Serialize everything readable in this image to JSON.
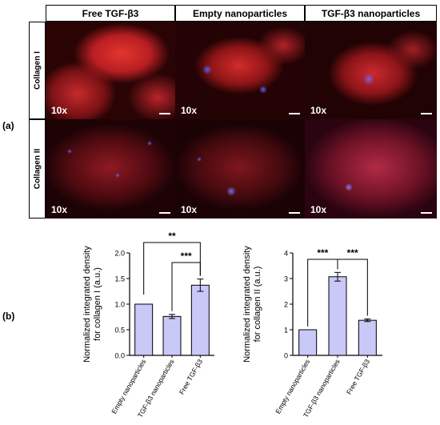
{
  "part_labels": {
    "a": "(a)",
    "b": "(b)"
  },
  "columns": [
    "Free TGF-β3",
    "Empty nanoparticles",
    "TGF-β3 nanoparticles"
  ],
  "rows": [
    "Collagen I",
    "Collagen II"
  ],
  "magnification": "10x",
  "colors": {
    "bar_fill": "#c9c8f7",
    "panel_red": "#d9252a",
    "panel_blue": "#3a3fcf"
  },
  "chart_data": [
    {
      "type": "bar",
      "categories": [
        "Empty nanoparticles",
        "TGF-β3 nanoparticles",
        "Free TGF-β3"
      ],
      "values": [
        1.0,
        0.76,
        1.37
      ],
      "errors": [
        0.0,
        0.04,
        0.12
      ],
      "ylabel": "Normalized integrated density for collagen I (a.u.)",
      "ylim": [
        0,
        2.0
      ],
      "yticks": [
        "0.0",
        "0.5",
        "1.0",
        "1.5",
        "2.0"
      ],
      "significance": [
        {
          "pair": [
            0,
            2
          ],
          "label": "**"
        },
        {
          "pair": [
            1,
            2
          ],
          "label": "***"
        }
      ]
    },
    {
      "type": "bar",
      "categories": [
        "Empty nanoparticles",
        "TGF-β3 nanoparticles",
        "Free TGF-β3"
      ],
      "values": [
        1.0,
        3.07,
        1.37
      ],
      "errors": [
        0.0,
        0.17,
        0.05
      ],
      "ylabel": "Normalized integrated density for collagen II (a.u.)",
      "ylim": [
        0,
        4
      ],
      "yticks": [
        "0",
        "1",
        "2",
        "3",
        "4"
      ],
      "significance": [
        {
          "pair": [
            0,
            1
          ],
          "label": "***"
        },
        {
          "pair": [
            1,
            2
          ],
          "label": "***"
        }
      ]
    }
  ]
}
